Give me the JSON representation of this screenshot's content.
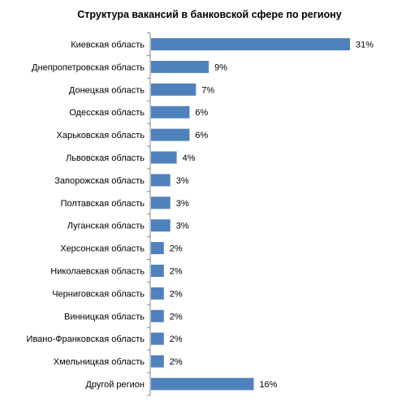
{
  "chart_data": {
    "type": "bar",
    "orientation": "horizontal",
    "title": "Структура вакансий в банковской сфере по региону",
    "xlabel": "",
    "ylabel": "",
    "xlim": [
      0,
      31
    ],
    "grid": false,
    "legend": "none",
    "bar_color": "#4f81bd",
    "categories": [
      "Киевская область",
      "Днепропетровская область",
      "Донецкая область",
      "Одесская область",
      "Харьковская область",
      "Львовская область",
      "Запорожская область",
      "Полтавская область",
      "Луганская область",
      "Херсонская область",
      "Николаевская область",
      "Черниговская область",
      "Винницкая область",
      "Ивано-Франковская область",
      "Хмельницкая область",
      "Другой регион"
    ],
    "values": [
      31,
      9,
      7,
      6,
      6,
      4,
      3,
      3,
      3,
      2,
      2,
      2,
      2,
      2,
      2,
      16
    ],
    "data_labels": [
      "31%",
      "9%",
      "7%",
      "6%",
      "6%",
      "4%",
      "3%",
      "3%",
      "3%",
      "2%",
      "2%",
      "2%",
      "2%",
      "2%",
      "2%",
      "16%"
    ]
  }
}
